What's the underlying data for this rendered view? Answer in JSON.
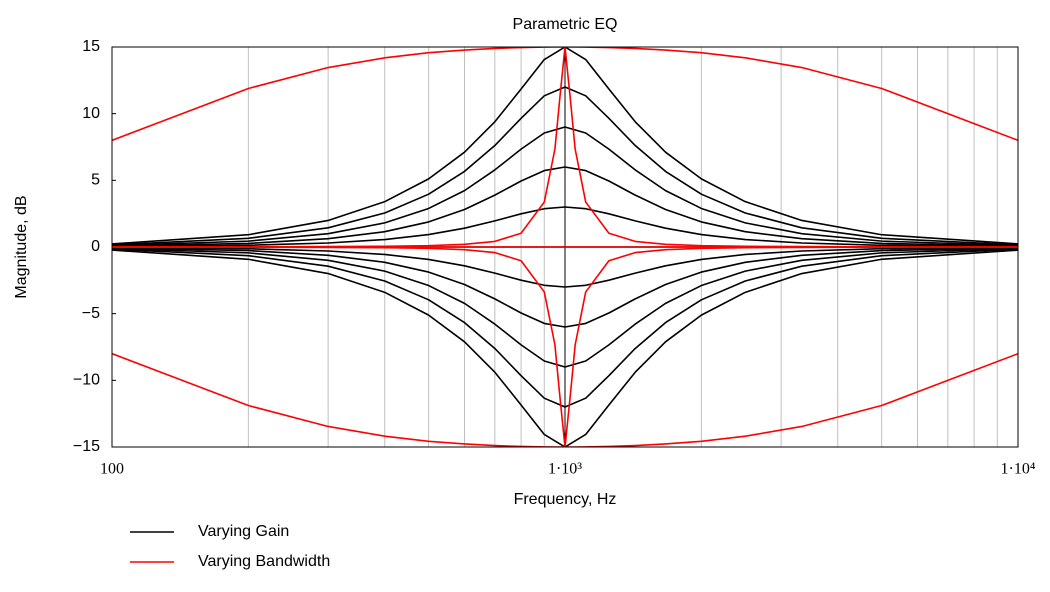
{
  "chart_data": {
    "type": "line",
    "title": "Parametric EQ",
    "x_label": "Frequency, Hz",
    "y_label": "Magnitude, dB",
    "xscale": "log",
    "xlim": [
      100,
      10000
    ],
    "ylim": [
      -15,
      15
    ],
    "xticks": [
      100,
      {
        "value": 1000,
        "label": "1·10³"
      },
      {
        "value": 10000,
        "label": "1·10⁴"
      }
    ],
    "xminorticks": [
      200,
      300,
      400,
      500,
      600,
      700,
      800,
      900,
      2000,
      3000,
      4000,
      5000,
      6000,
      7000,
      8000,
      9000
    ],
    "yticks": [
      {
        "value": -15,
        "label": "−15"
      },
      {
        "value": -10,
        "label": "−10"
      },
      {
        "value": -5,
        "label": "−5"
      },
      0,
      5,
      10,
      15
    ],
    "grid": "x",
    "legend": "bottom-left",
    "series": [
      {
        "name": "Varying Gain",
        "color": "#000000",
        "x": [
          100,
          200,
          300,
          400,
          500,
          600,
          700,
          800,
          900,
          1000,
          1111,
          1250,
          1429,
          1667,
          2000,
          2500,
          3333,
          5000,
          10000
        ],
        "curves": [
          [
            0.23,
            0.92,
            1.99,
            3.4,
            5.11,
            7.11,
            9.39,
            11.85,
            14.06,
            15,
            14.06,
            11.85,
            9.39,
            7.11,
            5.11,
            3.4,
            1.99,
            0.92,
            0.23
          ],
          [
            0.16,
            0.65,
            1.44,
            2.55,
            3.96,
            5.67,
            7.61,
            9.65,
            11.34,
            12,
            11.34,
            9.65,
            7.61,
            5.67,
            3.96,
            2.55,
            1.44,
            0.65,
            0.16
          ],
          [
            0.11,
            0.44,
            1.0,
            1.81,
            2.89,
            4.23,
            5.78,
            7.34,
            8.55,
            9,
            8.55,
            7.34,
            5.78,
            4.23,
            2.89,
            1.81,
            1.0,
            0.44,
            0.11
          ],
          [
            0.07,
            0.27,
            0.62,
            1.15,
            1.88,
            2.81,
            3.89,
            4.95,
            5.73,
            6,
            5.73,
            4.95,
            3.89,
            2.81,
            1.88,
            1.15,
            0.62,
            0.27,
            0.07
          ],
          [
            0.03,
            0.13,
            0.3,
            0.56,
            0.93,
            1.41,
            1.96,
            2.49,
            2.87,
            3,
            2.87,
            2.49,
            1.96,
            1.41,
            0.93,
            0.56,
            0.3,
            0.13,
            0.03
          ],
          [
            0,
            0,
            0,
            0,
            0,
            0,
            0,
            0,
            0,
            0,
            0,
            0,
            0,
            0,
            0,
            0,
            0,
            0,
            0
          ],
          [
            -0.03,
            -0.13,
            -0.3,
            -0.56,
            -0.93,
            -1.41,
            -1.96,
            -2.49,
            -2.87,
            -3,
            -2.87,
            -2.49,
            -1.96,
            -1.41,
            -0.93,
            -0.56,
            -0.3,
            -0.13,
            -0.03
          ],
          [
            -0.07,
            -0.27,
            -0.62,
            -1.15,
            -1.88,
            -2.81,
            -3.89,
            -4.95,
            -5.73,
            -6,
            -5.73,
            -4.95,
            -3.89,
            -2.81,
            -1.88,
            -1.15,
            -0.62,
            -0.27,
            -0.07
          ],
          [
            -0.11,
            -0.44,
            -1.0,
            -1.81,
            -2.89,
            -4.23,
            -5.78,
            -7.34,
            -8.55,
            -9,
            -8.55,
            -7.34,
            -5.78,
            -4.23,
            -2.89,
            -1.81,
            -1.0,
            -0.44,
            -0.11
          ],
          [
            -0.16,
            -0.65,
            -1.44,
            -2.55,
            -3.96,
            -5.67,
            -7.61,
            -9.65,
            -11.34,
            -12,
            -11.34,
            -9.65,
            -7.61,
            -5.67,
            -3.96,
            -2.55,
            -1.44,
            -0.65,
            -0.16
          ],
          [
            -0.23,
            -0.92,
            -1.99,
            -3.4,
            -5.11,
            -7.11,
            -9.39,
            -11.85,
            -14.06,
            -15,
            -14.06,
            -11.85,
            -9.39,
            -7.11,
            -5.11,
            -3.4,
            -1.99,
            -0.92,
            -0.23
          ]
        ]
      },
      {
        "name": "Varying Bandwidth",
        "color": "#ff0000",
        "x": [
          100,
          200,
          300,
          400,
          500,
          600,
          700,
          800,
          900,
          950,
          975,
          1000,
          1026,
          1053,
          1111,
          1250,
          1429,
          1667,
          2000,
          2500,
          3333,
          5000,
          10000
        ],
        "curves": [
          [
            8.0,
            11.89,
            13.46,
            14.19,
            14.57,
            14.77,
            14.89,
            14.96,
            14.99,
            15.0,
            15.0,
            15,
            15.0,
            15.0,
            14.99,
            14.96,
            14.89,
            14.77,
            14.57,
            14.19,
            13.46,
            11.89,
            8.0
          ],
          [
            0.0,
            0.01,
            0.03,
            0.05,
            0.1,
            0.2,
            0.42,
            1.03,
            3.37,
            7.34,
            11.32,
            15,
            11.32,
            7.34,
            3.37,
            1.03,
            0.42,
            0.2,
            0.1,
            0.05,
            0.03,
            0.01,
            0.0
          ],
          [
            0,
            0,
            0,
            0,
            0,
            0,
            0,
            0,
            0,
            0,
            0,
            0,
            0,
            0,
            0,
            0,
            0,
            0,
            0,
            0,
            0,
            0,
            0
          ],
          [
            0.0,
            -0.01,
            -0.03,
            -0.05,
            -0.1,
            -0.2,
            -0.42,
            -1.03,
            -3.37,
            -7.34,
            -11.32,
            -15,
            -11.32,
            -7.34,
            -3.37,
            -1.03,
            -0.42,
            -0.2,
            -0.1,
            -0.05,
            -0.03,
            -0.01,
            0.0
          ],
          [
            -8.0,
            -11.89,
            -13.46,
            -14.19,
            -14.57,
            -14.77,
            -14.89,
            -14.96,
            -14.99,
            -15.0,
            -15.0,
            -15,
            -15.0,
            -15.0,
            -14.99,
            -14.96,
            -14.89,
            -14.77,
            -14.57,
            -14.19,
            -13.46,
            -11.89,
            -8.0
          ]
        ]
      }
    ]
  }
}
